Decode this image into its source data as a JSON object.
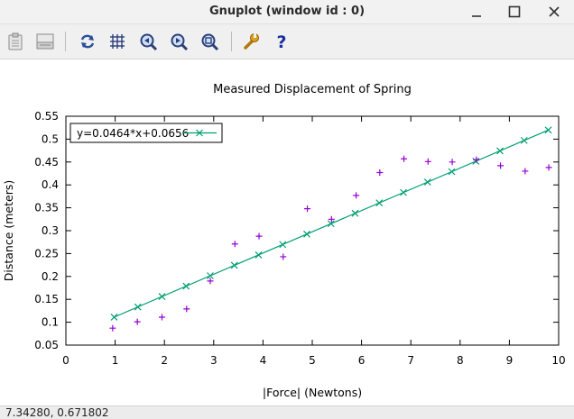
{
  "window": {
    "title": "Gnuplot (window id : 0)"
  },
  "toolbar": {
    "buttons": [
      {
        "name": "copy-to-clipboard",
        "icon": "clipboard-icon"
      },
      {
        "name": "print",
        "icon": "printer-icon"
      },
      {
        "name": "replot",
        "icon": "replot-icon"
      },
      {
        "name": "toggle-grid",
        "icon": "grid-icon"
      },
      {
        "name": "previous-zoom",
        "icon": "zoom-previous-icon"
      },
      {
        "name": "next-zoom",
        "icon": "zoom-next-icon"
      },
      {
        "name": "autoscale",
        "icon": "autoscale-icon"
      },
      {
        "name": "options",
        "icon": "wrench-icon"
      },
      {
        "name": "help",
        "icon": "help-icon"
      }
    ]
  },
  "status": {
    "coords": "7.34280,  0.671802"
  },
  "colors": {
    "data_points": "#9400d3",
    "fit_line": "#009e73"
  },
  "chart_data": {
    "type": "scatter",
    "title": "Measured Displacement of Spring",
    "xlabel": "|Force| (Newtons)",
    "ylabel": "Distance (meters)",
    "xlim": [
      0,
      10
    ],
    "ylim": [
      0.05,
      0.55
    ],
    "xticks": [
      "0",
      "1",
      "2",
      "3",
      "4",
      "5",
      "6",
      "7",
      "8",
      "9",
      "10"
    ],
    "yticks": [
      "0.05",
      "0.1",
      "0.15",
      "0.2",
      "0.25",
      "0.3",
      "0.35",
      "0.4",
      "0.45",
      "0.5",
      "0.55"
    ],
    "grid": false,
    "legend_position": "top-left",
    "series": [
      {
        "marker": "plus",
        "x": [
          0.95,
          1.45,
          1.95,
          2.45,
          2.93,
          3.43,
          3.92,
          4.41,
          4.9,
          5.39,
          5.89,
          6.37,
          6.86,
          7.35,
          7.84,
          8.33,
          8.82,
          9.32,
          9.8
        ],
        "y": [
          0.087,
          0.101,
          0.111,
          0.129,
          0.19,
          0.271,
          0.288,
          0.243,
          0.348,
          0.325,
          0.377,
          0.427,
          0.457,
          0.451,
          0.45,
          0.455,
          0.442,
          0.43,
          0.438
        ]
      },
      {
        "name": "y=0.0464*x+0.0656",
        "marker": "cross",
        "slope": 0.0464,
        "intercept": 0.0656,
        "x": [
          0.98,
          1.46,
          1.95,
          2.44,
          2.93,
          3.42,
          3.91,
          4.4,
          4.89,
          5.38,
          5.87,
          6.36,
          6.85,
          7.34,
          7.83,
          8.32,
          8.81,
          9.3,
          9.79
        ]
      }
    ]
  }
}
